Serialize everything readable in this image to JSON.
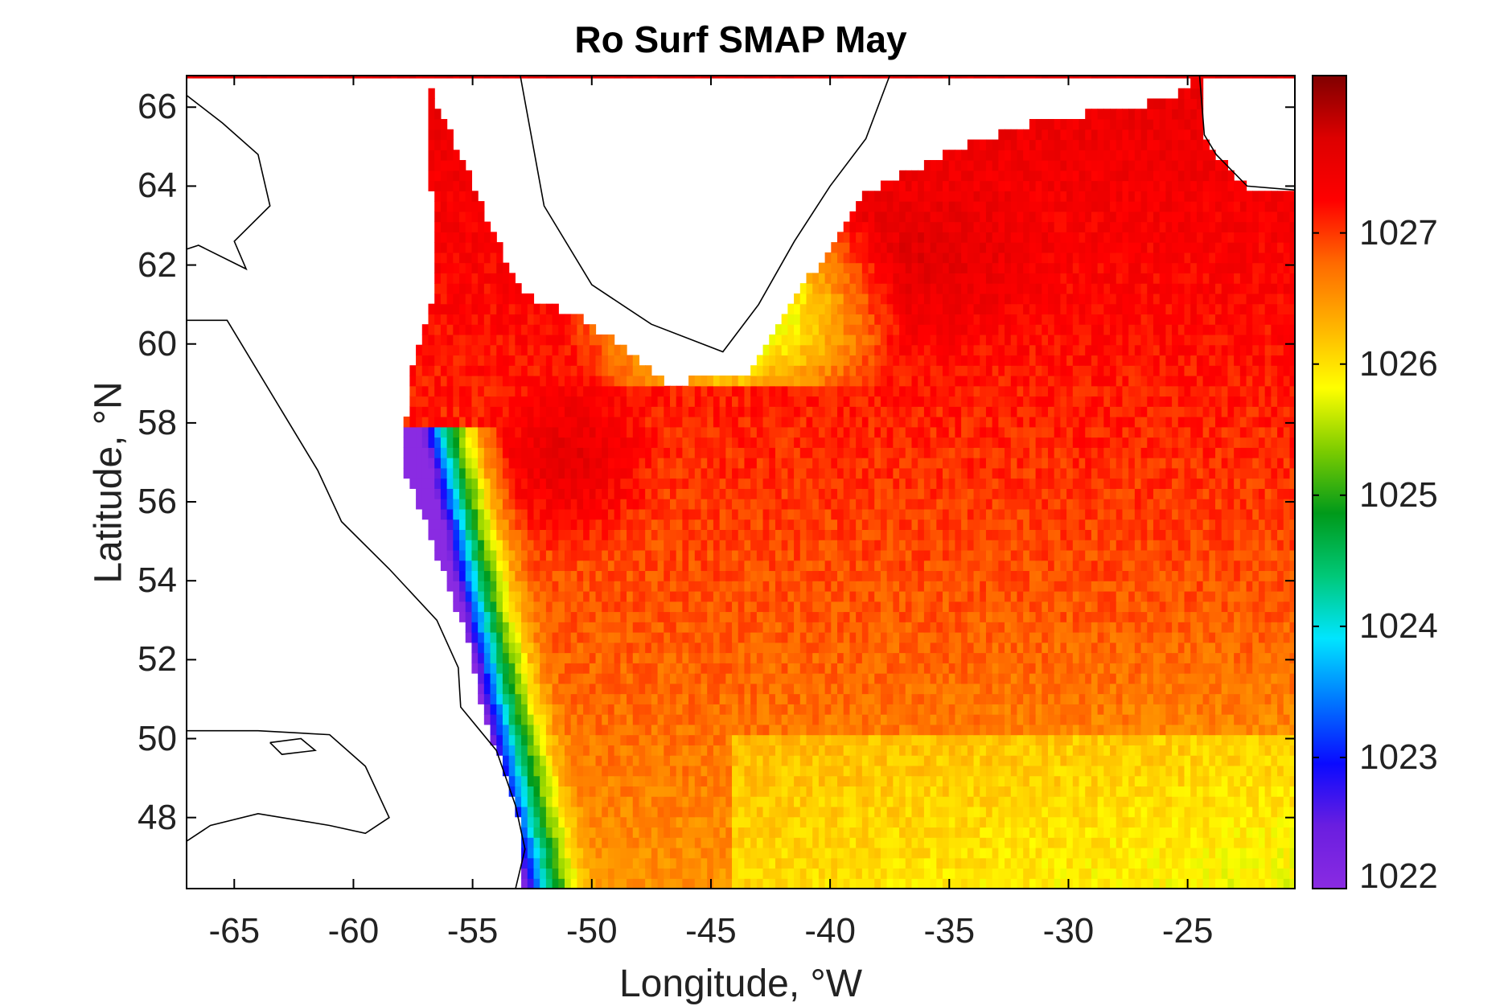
{
  "chart_data": {
    "type": "heatmap",
    "title": "Ro Surf SMAP May",
    "xlabel": "Longitude, °W",
    "ylabel": "Latitude, °N",
    "xlim": [
      -67,
      -20.5
    ],
    "ylim": [
      46.2,
      66.8
    ],
    "x_ticks": [
      -65,
      -60,
      -55,
      -50,
      -45,
      -40,
      -35,
      -30,
      -25
    ],
    "x_tick_labels": [
      "-65",
      "-60",
      "-55",
      "-50",
      "-45",
      "-40",
      "-35",
      "-30",
      "-25"
    ],
    "y_ticks": [
      48,
      50,
      52,
      54,
      56,
      58,
      60,
      62,
      64,
      66
    ],
    "y_tick_labels": [
      "48",
      "50",
      "52",
      "54",
      "56",
      "58",
      "60",
      "62",
      "64",
      "66"
    ],
    "colorbar": {
      "range": [
        1022,
        1028.2
      ],
      "ticks": [
        1022,
        1023,
        1024,
        1025,
        1026,
        1027
      ],
      "tick_labels": [
        "1022",
        "1023",
        "1024",
        "1025",
        "1026",
        "1027"
      ],
      "colormap": [
        "#8a2be2",
        "#6a1ee0",
        "#0a0aff",
        "#0077ff",
        "#00e5ff",
        "#00c878",
        "#009a1a",
        "#7ccc00",
        "#ffff00",
        "#ffb300",
        "#ff6a00",
        "#ff0000",
        "#dd0000",
        "#800000"
      ]
    },
    "field_summary": "Surface potential density from SMAP for May over the subpolar North Atlantic. Interior values about 1027 (red); darkest values around 1027.5-1028 in Labrador/Irminger Sea; lighter values about 1026.5 in the south-east; low values 1022-1025 along the Labrador and Newfoundland shelf; white = land / no data."
  },
  "colors": {
    "frame": "#000000",
    "coast": "#000000",
    "background": "#ffffff"
  }
}
